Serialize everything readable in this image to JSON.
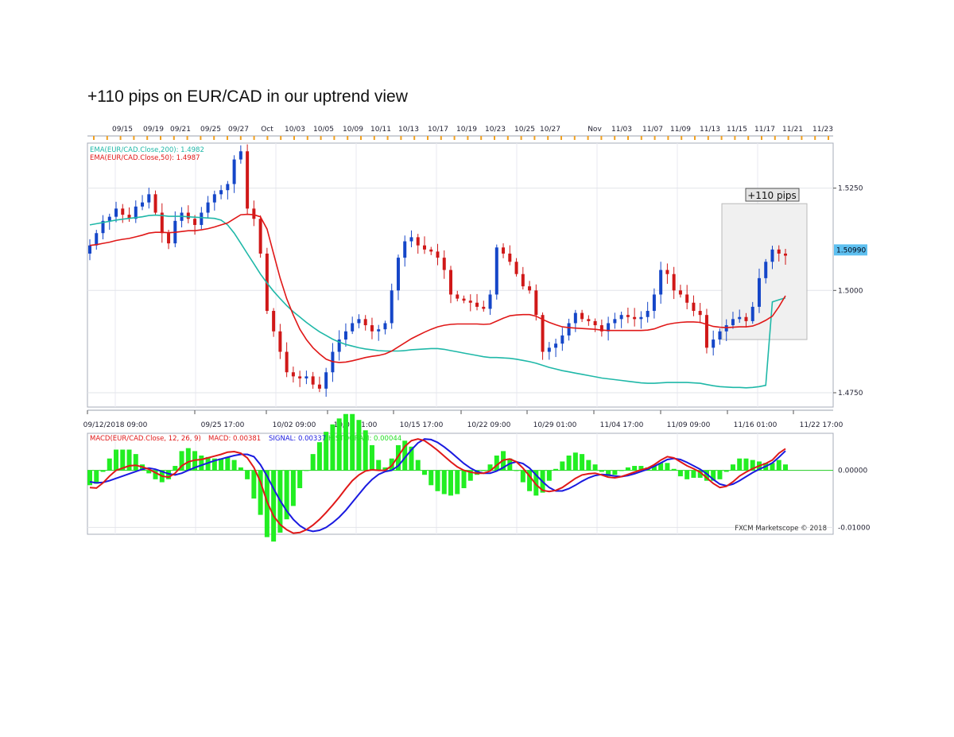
{
  "page": {
    "title": "+110 pips on EUR/CAD in our uptrend view"
  },
  "chart_data": {
    "type": "candlestick",
    "symbol": "EUR/CAD",
    "top_date_ticks": [
      "09/15",
      "09/19",
      "09/21",
      "09/25",
      "09/27",
      "Oct",
      "10/03",
      "10/05",
      "10/09",
      "10/11",
      "10/13",
      "10/17",
      "10/19",
      "10/23",
      "10/25",
      "10/27",
      "Nov",
      "11/03",
      "11/07",
      "11/09",
      "11/13",
      "11/15",
      "11/17",
      "11/21",
      "11/23"
    ],
    "bottom_date_ticks": [
      "09/12/2018 09:00",
      "09/25 17:00",
      "10/02 09:00",
      "10/09 01:00",
      "10/15 17:00",
      "10/22 09:00",
      "10/29 01:00",
      "11/04 17:00",
      "11/09 09:00",
      "11/16 01:00",
      "11/22 17:00"
    ],
    "price_axis": {
      "ticks": [
        "1.5250",
        "1.5000",
        "1.4750"
      ],
      "ylim": [
        1.4715,
        1.536
      ]
    },
    "current_price_label": "1.50990",
    "legend": [
      {
        "text": "EMA(EUR/CAD.Close,200): 1.4982",
        "color": "#1fb8a8"
      },
      {
        "text": "EMA(EUR/CAD.Close,50): 1.4987",
        "color": "#e01818"
      }
    ],
    "annotation": {
      "label": "+110 pips",
      "x_from": 0.893,
      "x_to": 0.998,
      "y_from": 1.488,
      "y_to": 1.5212
    },
    "price_series": [
      1.511,
      1.514,
      1.517,
      1.518,
      1.52,
      1.5185,
      1.5175,
      1.5205,
      1.5215,
      1.5235,
      1.519,
      1.514,
      1.5115,
      1.517,
      1.519,
      1.5175,
      1.516,
      1.519,
      1.5215,
      1.5235,
      1.5245,
      1.526,
      1.532,
      1.534,
      1.52,
      1.5175,
      1.509,
      1.495,
      1.49,
      1.485,
      1.48,
      1.479,
      1.4785,
      1.479,
      1.477,
      1.476,
      1.48,
      1.485,
      1.488,
      1.49,
      1.492,
      1.493,
      1.4915,
      1.49,
      1.4905,
      1.492,
      1.5,
      1.508,
      1.512,
      1.513,
      1.511,
      1.51,
      1.5095,
      1.508,
      1.505,
      1.499,
      1.498,
      1.4975,
      1.497,
      1.496,
      1.4955,
      1.499,
      1.5105,
      1.509,
      1.507,
      1.504,
      1.501,
      1.5,
      1.494,
      1.485,
      1.486,
      1.487,
      1.489,
      1.492,
      1.4945,
      1.493,
      1.4925,
      1.4915,
      1.49,
      1.492,
      1.493,
      1.494,
      1.4935,
      1.493,
      1.4935,
      1.495,
      1.499,
      1.505,
      1.504,
      1.5,
      1.499,
      1.497,
      1.495,
      1.494,
      1.486,
      1.488,
      1.49,
      1.4915,
      1.493,
      1.4935,
      1.4925,
      1.496,
      1.503,
      1.507,
      1.51,
      1.509,
      1.5085
    ],
    "ema200_series": [
      1.516,
      1.5163,
      1.5166,
      1.5169,
      1.5172,
      1.5174,
      1.5176,
      1.5178,
      1.518,
      1.5183,
      1.5184,
      1.5183,
      1.5181,
      1.5181,
      1.5181,
      1.518,
      1.5179,
      1.5178,
      1.5177,
      1.5176,
      1.5172,
      1.516,
      1.514,
      1.5115,
      1.509,
      1.5065,
      1.504,
      1.5018,
      1.4998,
      1.498,
      1.4963,
      1.4948,
      1.4935,
      1.4922,
      1.491,
      1.4899,
      1.489,
      1.4881,
      1.4874,
      1.4868,
      1.4864,
      1.486,
      1.4857,
      1.4855,
      1.4853,
      1.4852,
      1.4852,
      1.4852,
      1.4853,
      1.4855,
      1.4856,
      1.4857,
      1.4858,
      1.4858,
      1.4856,
      1.4853,
      1.485,
      1.4847,
      1.4844,
      1.4841,
      1.4838,
      1.4836,
      1.4836,
      1.4835,
      1.4834,
      1.4832,
      1.4829,
      1.4826,
      1.4822,
      1.4817,
      1.4812,
      1.4808,
      1.4804,
      1.4801,
      1.4798,
      1.4795,
      1.4792,
      1.4789,
      1.4786,
      1.4784,
      1.4782,
      1.478,
      1.4778,
      1.4776,
      1.4774,
      1.4773,
      1.4773,
      1.4774,
      1.4775,
      1.4775,
      1.4775,
      1.4775,
      1.4774,
      1.4773,
      1.477,
      1.4767,
      1.4765,
      1.4764,
      1.4763,
      1.4763,
      1.4762,
      1.4763,
      1.4765,
      1.4768,
      1.4972,
      1.4977,
      1.4982
    ],
    "ema50_series": [
      1.511,
      1.5112,
      1.5115,
      1.5118,
      1.5122,
      1.5125,
      1.5127,
      1.5131,
      1.5135,
      1.514,
      1.5142,
      1.5142,
      1.5141,
      1.5142,
      1.5144,
      1.5146,
      1.5146,
      1.5148,
      1.5151,
      1.5155,
      1.516,
      1.5165,
      1.5175,
      1.5185,
      1.5186,
      1.5185,
      1.518,
      1.515,
      1.509,
      1.503,
      1.498,
      1.494,
      1.4905,
      1.488,
      1.486,
      1.4845,
      1.4832,
      1.4826,
      1.4824,
      1.4825,
      1.4828,
      1.4832,
      1.4836,
      1.4839,
      1.4841,
      1.4845,
      1.4852,
      1.4862,
      1.4872,
      1.4882,
      1.489,
      1.4898,
      1.4905,
      1.4911,
      1.4915,
      1.4917,
      1.4918,
      1.4918,
      1.4918,
      1.4918,
      1.4917,
      1.4918,
      1.4925,
      1.4932,
      1.4938,
      1.494,
      1.4941,
      1.4941,
      1.4937,
      1.4929,
      1.4922,
      1.4916,
      1.4911,
      1.4909,
      1.4908,
      1.4907,
      1.4906,
      1.4905,
      1.4903,
      1.4902,
      1.4902,
      1.4902,
      1.4902,
      1.4902,
      1.4902,
      1.4903,
      1.4906,
      1.4912,
      1.4917,
      1.492,
      1.4922,
      1.4923,
      1.4923,
      1.4922,
      1.4917,
      1.4912,
      1.491,
      1.4909,
      1.491,
      1.4911,
      1.4911,
      1.4913,
      1.4919,
      1.4927,
      1.4937,
      1.496,
      1.4987
    ],
    "macd": {
      "legend": [
        {
          "text": "MACD(EUR/CAD.Close, 12, 26, 9)",
          "color": "#e01818"
        },
        {
          "text": "MACD: 0.00381",
          "color": "#e01818"
        },
        {
          "text": "SIGNAL: 0.00337",
          "color": "#1a1ae0"
        },
        {
          "text": "HISTOGRAM: 0.00044",
          "color": "#22dd22"
        }
      ],
      "ticks": [
        "0.00000",
        "-0.01000"
      ],
      "ylim": [
        -0.0112,
        0.0065
      ],
      "macd_series": [
        -0.003,
        -0.0031,
        -0.0022,
        -0.001,
        0.0,
        0.0004,
        0.0008,
        0.0009,
        0.0006,
        0.0002,
        -0.0004,
        -0.001,
        -0.0012,
        -0.0005,
        0.0008,
        0.0015,
        0.0018,
        0.0019,
        0.0022,
        0.0025,
        0.0028,
        0.0032,
        0.0033,
        0.003,
        0.0022,
        0.0005,
        -0.002,
        -0.0055,
        -0.008,
        -0.0095,
        -0.0104,
        -0.011,
        -0.0109,
        -0.0104,
        -0.0096,
        -0.0086,
        -0.0074,
        -0.0061,
        -0.0047,
        -0.0032,
        -0.0018,
        -0.0008,
        -0.0001,
        0.0001,
        0.0,
        0.0,
        0.0008,
        0.0025,
        0.0042,
        0.0052,
        0.0055,
        0.0052,
        0.0044,
        0.0035,
        0.0025,
        0.0015,
        0.0006,
        0.0,
        -0.0003,
        -0.0005,
        -0.0005,
        -0.0001,
        0.0009,
        0.0018,
        0.002,
        0.0015,
        0.0004,
        -0.001,
        -0.0025,
        -0.0035,
        -0.0037,
        -0.0035,
        -0.003,
        -0.0022,
        -0.0014,
        -0.0008,
        -0.0006,
        -0.0005,
        -0.0008,
        -0.0012,
        -0.0013,
        -0.0011,
        -0.0007,
        -0.0003,
        0.0001,
        0.0004,
        0.001,
        0.0018,
        0.0024,
        0.0022,
        0.0015,
        0.0008,
        0.0003,
        -0.0003,
        -0.0013,
        -0.0023,
        -0.003,
        -0.0028,
        -0.002,
        -0.001,
        -0.0003,
        0.0003,
        0.0008,
        0.0012,
        0.0018,
        0.003,
        0.0038
      ],
      "signal_series": [
        -0.002,
        -0.0022,
        -0.0021,
        -0.0018,
        -0.0014,
        -0.001,
        -0.0006,
        -0.0002,
        0.0002,
        0.0004,
        0.0002,
        -0.0002,
        -0.0006,
        -0.0008,
        -0.0005,
        0.0,
        0.0005,
        0.0009,
        0.0013,
        0.0017,
        0.002,
        0.0023,
        0.0026,
        0.0028,
        0.0028,
        0.0024,
        0.001,
        -0.001,
        -0.0032,
        -0.0053,
        -0.0071,
        -0.0086,
        -0.0097,
        -0.0104,
        -0.0107,
        -0.0105,
        -0.01,
        -0.0092,
        -0.0082,
        -0.007,
        -0.0056,
        -0.0042,
        -0.0028,
        -0.0016,
        -0.0007,
        -0.0002,
        0.0,
        0.0008,
        0.0022,
        0.0036,
        0.0048,
        0.0055,
        0.0054,
        0.0049,
        0.0041,
        0.0032,
        0.0022,
        0.0012,
        0.0004,
        -0.0002,
        -0.0005,
        -0.0005,
        -0.0001,
        0.0005,
        0.0012,
        0.0015,
        0.0012,
        0.0004,
        -0.0008,
        -0.002,
        -0.003,
        -0.0036,
        -0.0036,
        -0.0032,
        -0.0026,
        -0.0019,
        -0.0013,
        -0.0009,
        -0.0007,
        -0.0008,
        -0.001,
        -0.0011,
        -0.0009,
        -0.0006,
        -0.0002,
        0.0002,
        0.0007,
        0.0013,
        0.0019,
        0.0021,
        0.0019,
        0.0014,
        0.0008,
        0.0002,
        -0.0006,
        -0.0016,
        -0.0024,
        -0.0027,
        -0.0024,
        -0.0018,
        -0.0011,
        -0.0004,
        0.0002,
        0.0007,
        0.0013,
        0.0023,
        0.0034
      ]
    },
    "credit": "FXCM Marketscope © 2018"
  }
}
